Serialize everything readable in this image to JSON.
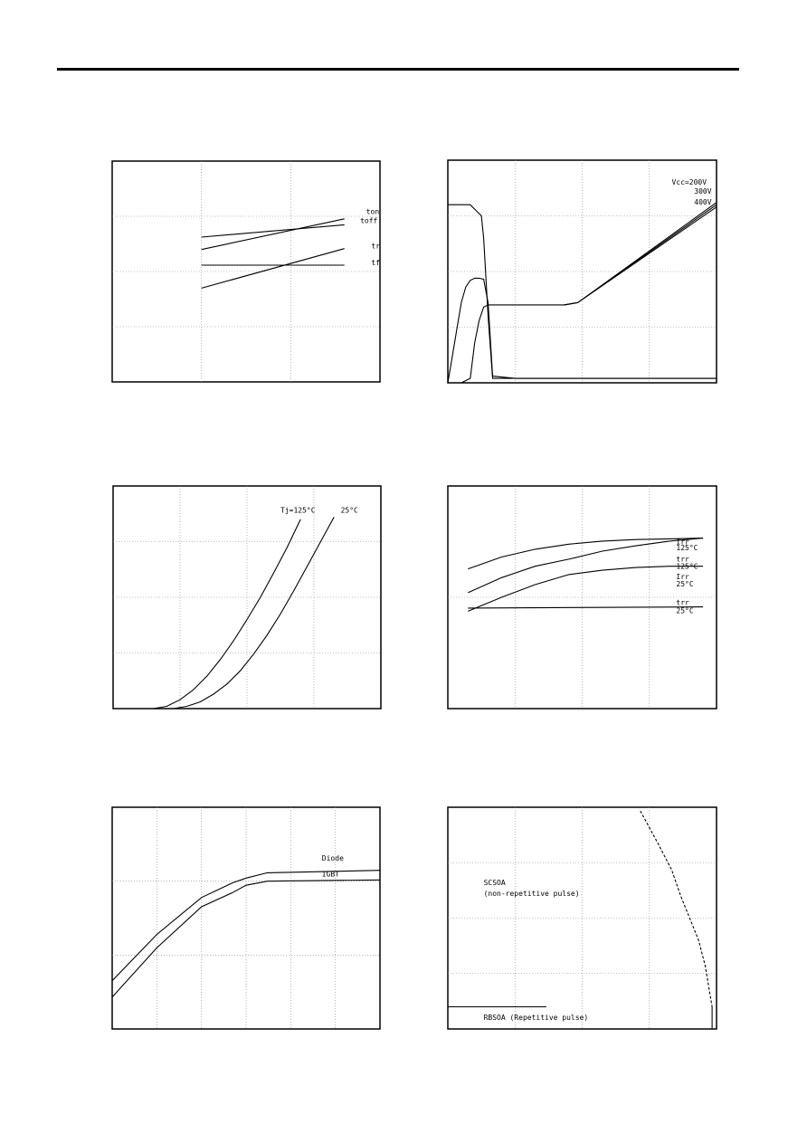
{
  "chart_data": [
    {
      "id": "c1",
      "type": "line",
      "xscale": "log",
      "yscale": "log",
      "xlim": [
        1,
        1000
      ],
      "ylim": [
        1,
        10000
      ],
      "grid": true,
      "series": [
        {
          "name": "ton",
          "x": [
            10,
            400
          ],
          "y": [
            250,
            900
          ]
        },
        {
          "name": "toff",
          "x": [
            10,
            400
          ],
          "y": [
            420,
            700
          ]
        },
        {
          "name": "tr",
          "x": [
            10,
            400
          ],
          "y": [
            50,
            260
          ]
        },
        {
          "name": "tf",
          "x": [
            10,
            400
          ],
          "y": [
            130,
            130
          ]
        }
      ],
      "labels": [
        {
          "text": "ton",
          "x": 700,
          "y": 1100
        },
        {
          "text": "toff",
          "x": 600,
          "y": 750
        },
        {
          "text": "tr",
          "x": 800,
          "y": 260
        },
        {
          "text": "tf",
          "x": 800,
          "y": 130
        }
      ]
    },
    {
      "id": "c2",
      "type": "line",
      "xscale": "linear",
      "yscale": "linear",
      "xlim": [
        0,
        1200
      ],
      "ylim": [
        0,
        100
      ],
      "grid": true,
      "series": [
        {
          "name": "",
          "x": [
            0,
            20,
            40,
            60,
            80,
            100,
            120,
            140,
            160,
            180,
            200,
            300,
            400,
            500,
            550,
            1200
          ],
          "y": [
            0,
            12,
            24,
            36,
            43,
            46,
            47,
            47,
            46.5,
            36,
            3,
            2,
            2,
            2,
            2,
            2
          ]
        },
        {
          "name": "",
          "x": [
            0,
            60,
            100,
            120,
            140,
            160,
            180,
            300,
            450,
            520,
            580,
            1200
          ],
          "y": [
            0,
            0,
            2,
            18,
            28,
            34,
            35,
            35,
            35,
            35,
            36,
            80
          ]
        },
        {
          "name": "",
          "x": [
            0,
            60,
            100,
            110,
            120,
            150,
            160,
            180,
            200,
            1200
          ],
          "y": [
            80,
            80,
            80,
            79,
            78,
            75,
            65,
            30,
            2,
            2
          ]
        },
        {
          "name": "",
          "x": [
            520,
            580,
            1200
          ],
          "y": [
            35,
            36,
            81
          ]
        },
        {
          "name": "",
          "x": [
            520,
            580,
            1200
          ],
          "y": [
            35,
            36,
            79
          ]
        }
      ],
      "labels": [
        {
          "text": "Vcc=200V",
          "x": 1000,
          "y": 89
        },
        {
          "text": "300V",
          "x": 1100,
          "y": 85
        },
        {
          "text": "400V",
          "x": 1100,
          "y": 80
        }
      ]
    },
    {
      "id": "c3",
      "type": "line",
      "xscale": "linear",
      "yscale": "linear",
      "xlim": [
        0,
        4
      ],
      "ylim": [
        0,
        200
      ],
      "grid": true,
      "series": [
        {
          "name": "125°C",
          "x": [
            0.6,
            0.8,
            1.0,
            1.2,
            1.4,
            1.6,
            1.8,
            2.0,
            2.2,
            2.4,
            2.6,
            2.8
          ],
          "y": [
            0,
            2,
            8,
            17,
            29,
            44,
            61,
            80,
            100,
            122,
            145,
            170
          ]
        },
        {
          "name": "25°C",
          "x": [
            0.9,
            1.1,
            1.3,
            1.5,
            1.7,
            1.9,
            2.1,
            2.3,
            2.5,
            2.7,
            2.9,
            3.1,
            3.3
          ],
          "y": [
            0,
            2,
            6,
            13,
            22,
            34,
            49,
            66,
            85,
            106,
            128,
            150,
            172
          ]
        }
      ],
      "labels": [
        {
          "text": "Tj=125°C",
          "x": 2.5,
          "y": 176
        },
        {
          "text": "25°C",
          "x": 3.4,
          "y": 176
        }
      ]
    },
    {
      "id": "c4",
      "type": "line",
      "xscale": "linear",
      "yscale": "log",
      "xlim": [
        0,
        400
      ],
      "ylim": [
        10,
        1000
      ],
      "grid": true,
      "series": [
        {
          "name": "Irr 125°C",
          "x": [
            30,
            80,
            130,
            180,
            230,
            280,
            330,
            380
          ],
          "y": [
            180,
            230,
            270,
            300,
            320,
            330,
            335,
            340
          ]
        },
        {
          "name": "trr 125°C",
          "x": [
            30,
            80,
            130,
            180,
            230,
            280,
            330,
            380
          ],
          "y": [
            110,
            150,
            190,
            220,
            260,
            290,
            320,
            340
          ]
        },
        {
          "name": "Irr 25°C",
          "x": [
            30,
            80,
            130,
            180,
            230,
            280,
            330,
            380
          ],
          "y": [
            75,
            100,
            130,
            160,
            175,
            185,
            190,
            190
          ]
        },
        {
          "name": "trr 25°C",
          "x": [
            30,
            380
          ],
          "y": [
            80,
            82
          ]
        }
      ],
      "labels": [
        {
          "text": "Irr",
          "x": 340,
          "y": 300
        },
        {
          "text": "125°C",
          "x": 340,
          "y": 265
        },
        {
          "text": "trr",
          "x": 340,
          "y": 210
        },
        {
          "text": "125°C",
          "x": 340,
          "y": 180
        },
        {
          "text": "Irr",
          "x": 340,
          "y": 145
        },
        {
          "text": "25°C",
          "x": 340,
          "y": 125
        },
        {
          "text": "trr",
          "x": 340,
          "y": 85
        },
        {
          "text": "25°C",
          "x": 340,
          "y": 72
        }
      ]
    },
    {
      "id": "c5",
      "type": "line",
      "xscale": "log",
      "yscale": "log",
      "xlim": [
        1e-05,
        10
      ],
      "ylim": [
        0.001,
        1
      ],
      "grid": true,
      "series": [
        {
          "name": "Diode",
          "x": [
            1e-05,
            0.0001,
            0.001,
            0.005,
            0.01,
            0.03,
            10
          ],
          "y": [
            0.0045,
            0.019,
            0.06,
            0.095,
            0.11,
            0.13,
            0.14
          ]
        },
        {
          "name": "IGBT",
          "x": [
            1e-05,
            0.0001,
            0.001,
            0.005,
            0.01,
            0.03,
            10
          ],
          "y": [
            0.0027,
            0.0125,
            0.045,
            0.07,
            0.088,
            0.1,
            0.104
          ]
        }
      ],
      "labels": [
        {
          "text": "Diode",
          "x": 0.5,
          "y": 0.19
        },
        {
          "text": "IGBT",
          "x": 0.5,
          "y": 0.115
        }
      ]
    },
    {
      "id": "c6",
      "type": "line",
      "xscale": "linear",
      "yscale": "linear",
      "xlim": [
        0,
        600
      ],
      "ylim": [
        0,
        600
      ],
      "grid": true,
      "series": [
        {
          "name": "SCSOA",
          "dashed": true,
          "x": [
            430,
            470,
            500,
            520,
            540,
            560,
            575,
            590
          ],
          "y": [
            590,
            500,
            430,
            360,
            300,
            240,
            170,
            60
          ]
        },
        {
          "name": "",
          "x": [
            590,
            590
          ],
          "y": [
            60,
            0
          ]
        },
        {
          "name": "RBSOA",
          "x": [
            0,
            220
          ],
          "y": [
            60,
            60
          ]
        }
      ],
      "labels": [
        {
          "text": "SCSOA",
          "x": 80,
          "y": 390
        },
        {
          "text": "(non-repetitive pulse)",
          "x": 80,
          "y": 360
        },
        {
          "text": "RBSOA (Repetitive pulse)",
          "x": 80,
          "y": 25
        }
      ]
    }
  ]
}
